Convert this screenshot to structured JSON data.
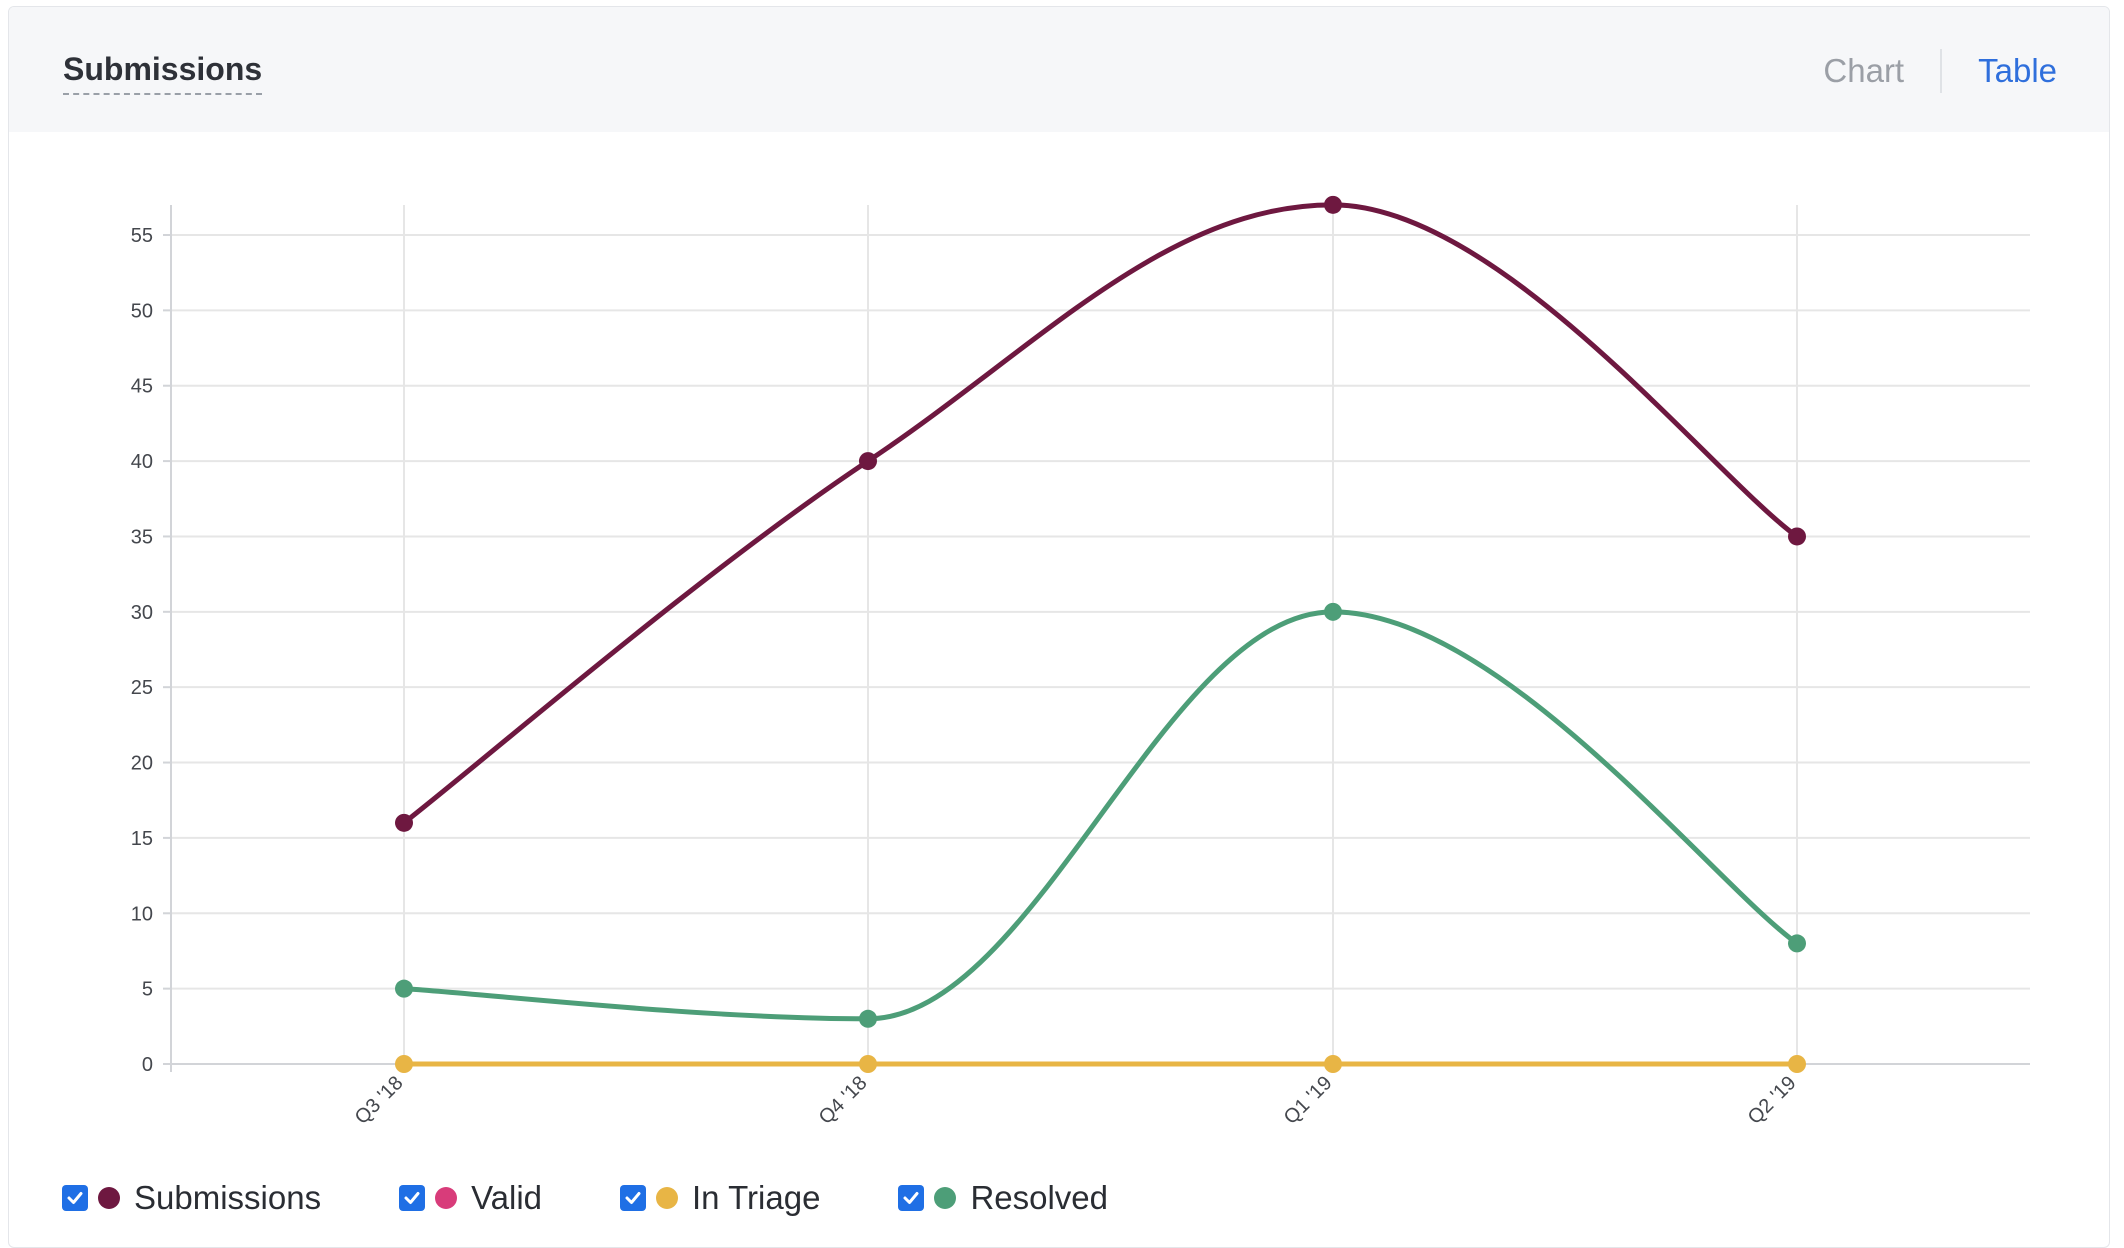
{
  "header": {
    "title": "Submissions",
    "chart_label": "Chart",
    "table_label": "Table",
    "active_view": "Table"
  },
  "colors": {
    "Submissions": "#6e1840",
    "Valid": "#d83c7a",
    "In Triage": "#e8b545",
    "Resolved": "#4d9e78",
    "grid": "#e6e6e6",
    "axis_text": "#44474d",
    "checkbox": "#1f6fe5"
  },
  "legend": [
    {
      "label": "Submissions",
      "checked": true,
      "icon": "check-icon"
    },
    {
      "label": "Valid",
      "checked": true,
      "icon": "check-icon"
    },
    {
      "label": "In Triage",
      "checked": true,
      "icon": "check-icon"
    },
    {
      "label": "Resolved",
      "checked": true,
      "icon": "check-icon"
    }
  ],
  "chart_data": {
    "type": "line",
    "categories": [
      "Q3 '18",
      "Q4 '18",
      "Q1 '19",
      "Q2 '19"
    ],
    "series": [
      {
        "name": "Submissions",
        "values": [
          16,
          40,
          57,
          35
        ]
      },
      {
        "name": "In Triage",
        "values": [
          0,
          0,
          0,
          0
        ]
      },
      {
        "name": "Resolved",
        "values": [
          5,
          3,
          30,
          8
        ]
      }
    ],
    "y_ticks": [
      0,
      5,
      10,
      15,
      20,
      25,
      30,
      35,
      40,
      45,
      50,
      55
    ],
    "ylim": [
      0,
      57
    ],
    "grid": true,
    "smooth": true,
    "legend_position": "bottom-left"
  }
}
